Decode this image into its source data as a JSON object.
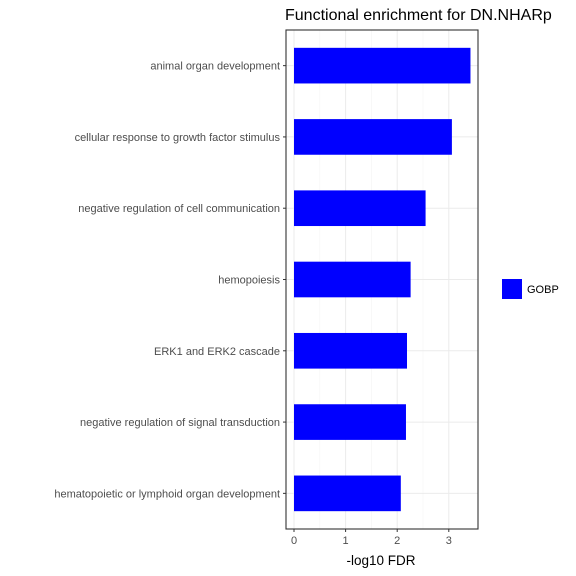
{
  "chart_data": {
    "type": "bar",
    "orientation": "horizontal",
    "title": "Functional enrichment for DN.NHARp",
    "xlabel": "-log10 FDR",
    "ylabel": "",
    "xlim": [
      0,
      3.6
    ],
    "xticks": [
      0,
      1,
      2,
      3
    ],
    "grid": true,
    "legend_position": "right",
    "categories": [
      "animal organ development",
      "cellular response to growth factor stimulus",
      "negative regulation of cell communication",
      "hemopoiesis",
      "ERK1 and ERK2 cascade",
      "negative regulation of signal transduction",
      "hematopoietic or lymphoid organ development"
    ],
    "series": [
      {
        "name": "GOBP",
        "color": "#0000ff",
        "values": [
          3.42,
          3.06,
          2.55,
          2.26,
          2.19,
          2.17,
          2.07
        ]
      }
    ]
  }
}
